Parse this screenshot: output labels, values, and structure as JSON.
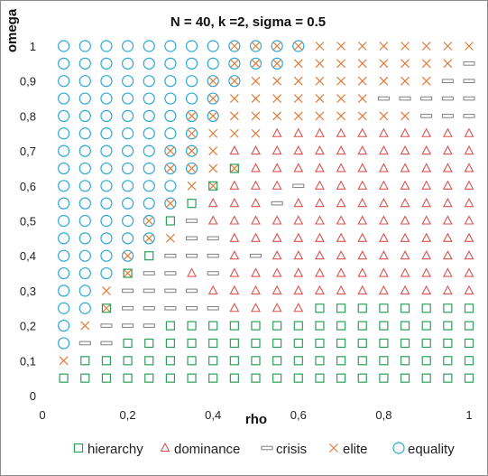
{
  "chart_data": {
    "type": "scatter",
    "title": "N = 40, k =2, sigma = 0.5",
    "xlabel": "rho",
    "ylabel": "omega",
    "xlim": [
      0,
      1
    ],
    "ylim": [
      0,
      1
    ],
    "x_ticks": [
      "0",
      "0,2",
      "0,4",
      "0,6",
      "0,8",
      "1"
    ],
    "y_ticks": [
      "0",
      "0,1",
      "0,2",
      "0,3",
      "0,4",
      "0,5",
      "0,6",
      "0,7",
      "0,8",
      "0,9",
      "1"
    ],
    "grid": "none",
    "legend_position": "bottom",
    "grid_step": 0.05,
    "series": [
      {
        "name": "hierarchy",
        "marker": "square",
        "color": "#2e9e5b"
      },
      {
        "name": "dominance",
        "marker": "triangle",
        "color": "#d9534f"
      },
      {
        "name": "crisis",
        "marker": "dash",
        "color": "#7f7f7f"
      },
      {
        "name": "elite",
        "marker": "cross",
        "color": "#e07b39"
      },
      {
        "name": "equality",
        "marker": "circle",
        "color": "#2aa7d6"
      }
    ],
    "grid_rows_top_to_bottom": {
      "1.00": [
        "O",
        "O",
        "O",
        "O",
        "O",
        "O",
        "O",
        "O",
        "OX",
        "OX",
        "OX",
        "OX",
        "X",
        "X",
        "X",
        "X",
        "X",
        "X",
        "X",
        "X"
      ],
      "0.95": [
        "O",
        "O",
        "O",
        "O",
        "O",
        "O",
        "O",
        "O",
        "OX",
        "OX",
        "OX",
        "X",
        "X",
        "X",
        "X",
        "X",
        "X",
        "X",
        "X",
        "-"
      ],
      "0.90": [
        "O",
        "O",
        "O",
        "O",
        "O",
        "O",
        "O",
        "OX",
        "OX",
        "X",
        "X",
        "X",
        "X",
        "X",
        "X",
        "X",
        "X",
        "X",
        "-",
        "-"
      ],
      "0.85": [
        "O",
        "O",
        "O",
        "O",
        "O",
        "O",
        "O",
        "OX",
        "X",
        "X",
        "X",
        "X",
        "X",
        "X",
        "X",
        "-",
        "-",
        "-",
        "-",
        "-"
      ],
      "0.80": [
        "O",
        "O",
        "O",
        "O",
        "O",
        "O",
        "OX",
        "OX",
        "X",
        "X",
        "X",
        "X",
        "X",
        "X",
        "X",
        "X",
        "X",
        "-",
        "-",
        "-"
      ],
      "0.75": [
        "O",
        "O",
        "O",
        "O",
        "O",
        "O",
        "OX",
        "X",
        "X",
        "X",
        "A",
        "A",
        "A",
        "A",
        "A",
        "A",
        "A",
        "A",
        "A",
        "A"
      ],
      "0.70": [
        "O",
        "O",
        "O",
        "O",
        "O",
        "OX",
        "OX",
        "X",
        "A",
        "A",
        "A",
        "A",
        "A",
        "A",
        "A",
        "A",
        "A",
        "A",
        "A",
        "A"
      ],
      "0.65": [
        "O",
        "O",
        "O",
        "O",
        "O",
        "OX",
        "OX",
        "X",
        "XS",
        "A",
        "A",
        "A",
        "A",
        "A",
        "A",
        "A",
        "A",
        "A",
        "A",
        "A"
      ],
      "0.60": [
        "O",
        "O",
        "O",
        "O",
        "O",
        "O",
        "X",
        "XS",
        "A",
        "A",
        "A",
        "-",
        "A",
        "A",
        "A",
        "A",
        "A",
        "A",
        "A",
        "A"
      ],
      "0.55": [
        "O",
        "O",
        "O",
        "O",
        "O",
        "OX",
        "S",
        "A",
        "A",
        "A",
        "-",
        "A",
        "A",
        "A",
        "A",
        "A",
        "A",
        "A",
        "A",
        "A"
      ],
      "0.50": [
        "O",
        "O",
        "O",
        "O",
        "OX",
        "S",
        "-",
        "A",
        "A",
        "A",
        "A",
        "A",
        "A",
        "A",
        "A",
        "A",
        "A",
        "A",
        "A",
        "A"
      ],
      "0.45": [
        "O",
        "O",
        "O",
        "O",
        "OX",
        "X",
        "-",
        "-",
        "A",
        "A",
        "A",
        "A",
        "A",
        "A",
        "A",
        "A",
        "A",
        "A",
        "A",
        "A"
      ],
      "0.40": [
        "O",
        "O",
        "O",
        "OX",
        "S",
        "-",
        "-",
        "-",
        "A",
        "-",
        "A",
        "A",
        "A",
        "A",
        "A",
        "A",
        "A",
        "A",
        "A",
        "A"
      ],
      "0.35": [
        "O",
        "O",
        "O",
        "XS",
        "-",
        "-",
        "A",
        "-",
        "A",
        "A",
        "A",
        "A",
        "A",
        "A",
        "A",
        "A",
        "A",
        "A",
        "A",
        "A"
      ],
      "0.30": [
        "O",
        "O",
        "X",
        "-",
        "-",
        "-",
        "-",
        "A",
        "A",
        "A",
        "A",
        "A",
        "A",
        "A",
        "A",
        "A",
        "A",
        "A",
        "A",
        "A"
      ],
      "0.25": [
        "O",
        "O",
        "XS",
        "-",
        "-",
        "-",
        "-",
        "-",
        "A",
        "A",
        "A",
        "A",
        "S",
        "S",
        "S",
        "S",
        "S",
        "S",
        "S",
        "S"
      ],
      "0.20": [
        "O",
        "X",
        "-",
        "-",
        "-",
        "S",
        "S",
        "S",
        "S",
        "S",
        "S",
        "S",
        "S",
        "S",
        "S",
        "S",
        "S",
        "S",
        "S",
        "S"
      ],
      "0.15": [
        "O",
        "-",
        "-",
        "S",
        "S",
        "S",
        "S",
        "S",
        "S",
        "S",
        "S",
        "S",
        "S",
        "S",
        "S",
        "S",
        "S",
        "S",
        "S",
        "S"
      ],
      "0.10": [
        "X",
        "S",
        "S",
        "S",
        "S",
        "S",
        "S",
        "S",
        "S",
        "S",
        "S",
        "S",
        "S",
        "S",
        "S",
        "S",
        "S",
        "S",
        "S",
        "S"
      ],
      "0.05": [
        "S",
        "S",
        "S",
        "S",
        "S",
        "S",
        "S",
        "S",
        "S",
        "S",
        "S",
        "S",
        "S",
        "S",
        "S",
        "S",
        "S",
        "S",
        "S",
        "S"
      ]
    },
    "code_key": {
      "S": "hierarchy",
      "A": "dominance",
      "-": "crisis",
      "X": "elite",
      "O": "equality"
    }
  }
}
